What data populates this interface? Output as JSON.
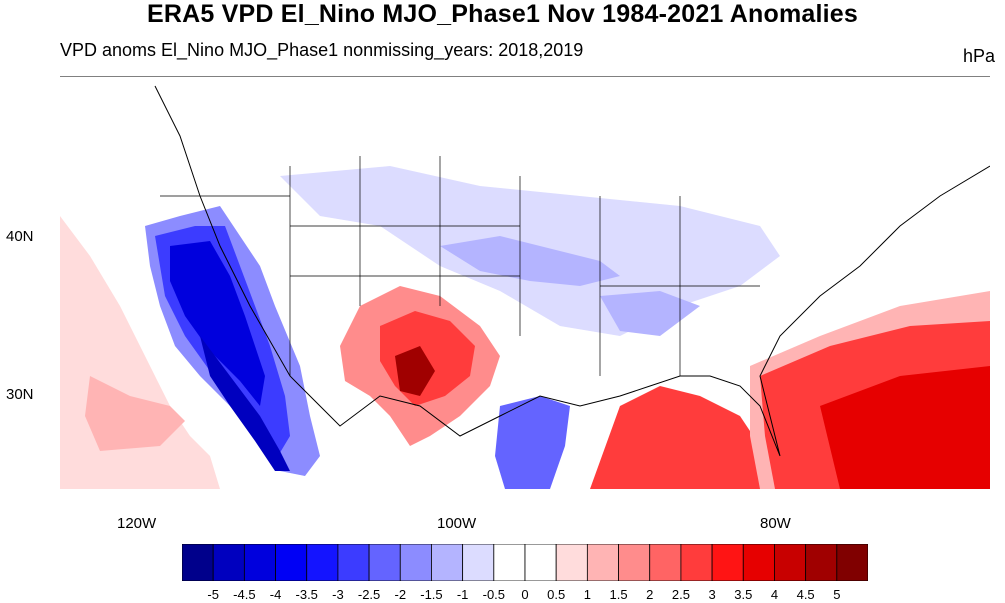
{
  "title": "ERA5 VPD El_Nino MJO_Phase1 Nov 1984-2021 Anomalies",
  "subtitle_left": "VPD anoms El_Nino MJO_Phase1 nonmissing_years: 2018,2019",
  "subtitle_right": "hPa",
  "lat_labels": [
    "40N",
    "30N"
  ],
  "lon_labels": [
    "120W",
    "100W",
    "80W"
  ],
  "colorbar": {
    "labels": [
      "-5",
      "-4.5",
      "-4",
      "-3.5",
      "-3",
      "-2.5",
      "-2",
      "-1.5",
      "-1",
      "-0.5",
      "0",
      "0.5",
      "1",
      "1.5",
      "2",
      "2.5",
      "3",
      "3.5",
      "4",
      "4.5",
      "5"
    ],
    "colors": [
      "#00008B",
      "#0000BF",
      "#0000DD",
      "#0000F5",
      "#1414FF",
      "#3C3CFF",
      "#6464FF",
      "#8C8CFF",
      "#B4B4FF",
      "#DCDCFF",
      "#FFFFFF",
      "#FFFFFF",
      "#FFDCDC",
      "#FFB4B4",
      "#FF8C8C",
      "#FF6464",
      "#FF3C3C",
      "#FF1414",
      "#E60000",
      "#C80000",
      "#A00000",
      "#800000"
    ]
  }
}
